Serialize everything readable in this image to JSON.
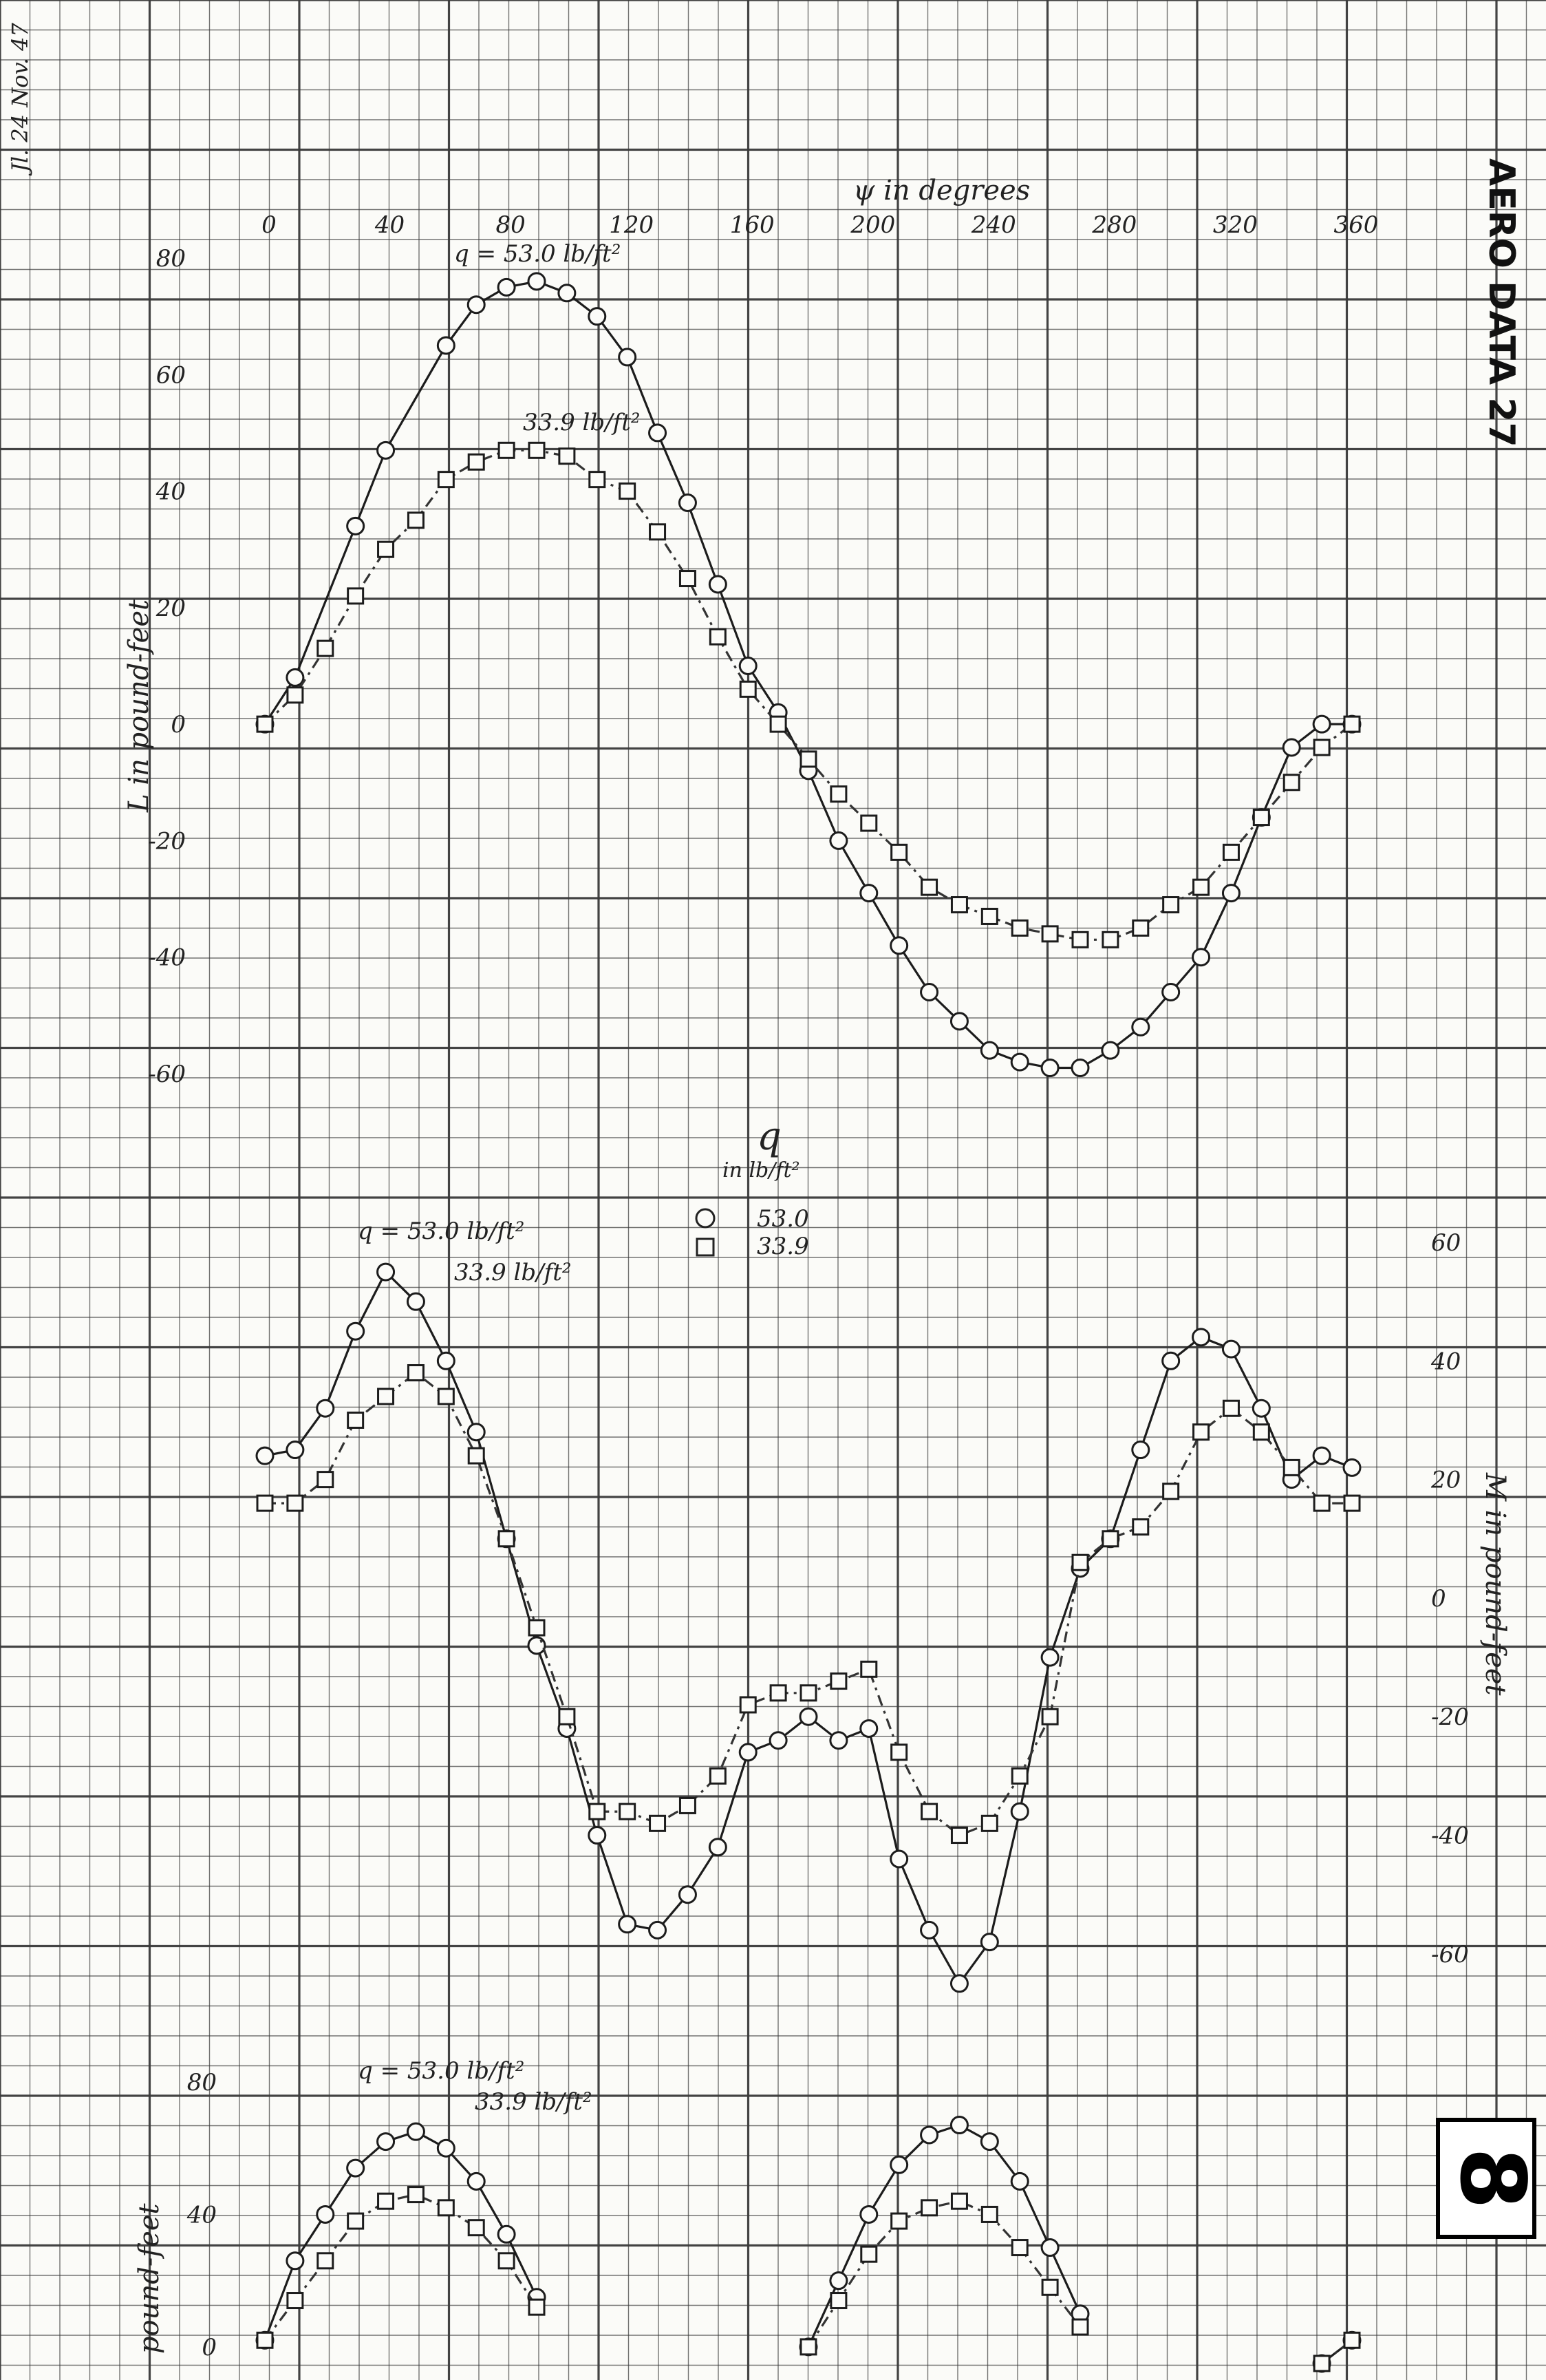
{
  "sheet": {
    "stamp_title": "AERO DATA 27",
    "corner_note": "Jl. 24 Nov. 47",
    "page_number": "8",
    "colors": {
      "grid": "#3a3a3a",
      "ink": "#222222",
      "paper": "#fbfbf8"
    }
  },
  "legend": {
    "title_symbol": "q",
    "title_unit": "in lb/ft²",
    "entries": [
      {
        "marker": "circle",
        "label": "53.0"
      },
      {
        "marker": "square",
        "label": "33.9"
      }
    ]
  },
  "chart_data": [
    {
      "type": "line",
      "xlabel": "ψ in degrees",
      "ylabel": "L in pound-feet",
      "x_ticks": [
        "0",
        "40",
        "80",
        "120",
        "160",
        "200",
        "240",
        "280",
        "320",
        "360"
      ],
      "y_ticks": [
        "80",
        "60",
        "40",
        "20",
        "0",
        "-20",
        "-40",
        "-60"
      ],
      "xlim": [
        0,
        360
      ],
      "ylim": [
        -60,
        80
      ],
      "grid": true,
      "annotations": [
        "q = 53.0 lb/ft²",
        "33.9 lb/ft²"
      ],
      "series": [
        {
          "name": "53.0",
          "marker": "circle",
          "x": [
            0,
            10,
            30,
            40,
            60,
            70,
            80,
            90,
            100,
            110,
            120,
            130,
            140,
            150,
            160,
            170,
            180,
            190,
            200,
            210,
            220,
            230,
            240,
            250,
            260,
            270,
            280,
            290,
            300,
            310,
            320,
            330,
            340,
            350,
            360
          ],
          "y": [
            0,
            8,
            34,
            47,
            65,
            72,
            75,
            76,
            74,
            70,
            63,
            50,
            38,
            24,
            10,
            2,
            -8,
            -20,
            -29,
            -38,
            -46,
            -51,
            -56,
            -58,
            -59,
            -59,
            -56,
            -52,
            -46,
            -40,
            -29,
            -16,
            -4,
            0,
            0
          ]
        },
        {
          "name": "33.9",
          "marker": "square",
          "x": [
            0,
            10,
            20,
            30,
            40,
            50,
            60,
            70,
            80,
            90,
            100,
            110,
            120,
            130,
            140,
            150,
            160,
            170,
            180,
            190,
            200,
            210,
            220,
            230,
            240,
            250,
            260,
            270,
            280,
            290,
            300,
            310,
            320,
            330,
            340,
            350,
            360
          ],
          "y": [
            0,
            5,
            13,
            22,
            30,
            35,
            42,
            45,
            47,
            47,
            46,
            42,
            40,
            33,
            25,
            15,
            6,
            0,
            -6,
            -12,
            -17,
            -22,
            -28,
            -31,
            -33,
            -35,
            -36,
            -37,
            -37,
            -35,
            -31,
            -28,
            -22,
            -16,
            -10,
            -4,
            0
          ]
        }
      ]
    },
    {
      "type": "line",
      "xlabel": "",
      "ylabel": "M in pound-feet",
      "x_ticks": [],
      "y_ticks": [
        "60",
        "40",
        "20",
        "0",
        "-20",
        "-40",
        "-60"
      ],
      "xlim": [
        0,
        360
      ],
      "ylim": [
        -70,
        60
      ],
      "grid": true,
      "annotations": [
        "q = 53.0 lb/ft²",
        "33.9 lb/ft²"
      ],
      "series": [
        {
          "name": "53.0",
          "marker": "circle",
          "x": [
            0,
            10,
            20,
            30,
            40,
            50,
            60,
            70,
            80,
            90,
            100,
            110,
            120,
            130,
            140,
            150,
            160,
            170,
            180,
            190,
            200,
            210,
            220,
            230,
            240,
            250,
            260,
            270,
            280,
            290,
            300,
            310,
            320,
            330,
            340,
            350,
            360
          ],
          "y": [
            24,
            25,
            32,
            45,
            55,
            50,
            40,
            28,
            10,
            -8,
            -22,
            -40,
            -55,
            -56,
            -50,
            -42,
            -26,
            -24,
            -20,
            -24,
            -22,
            -44,
            -56,
            -65,
            -58,
            -36,
            -10,
            5,
            10,
            25,
            40,
            44,
            42,
            32,
            20,
            24,
            22
          ]
        },
        {
          "name": "33.9",
          "marker": "square",
          "x": [
            0,
            10,
            20,
            30,
            40,
            50,
            60,
            70,
            80,
            90,
            100,
            110,
            120,
            130,
            140,
            150,
            160,
            170,
            180,
            190,
            200,
            210,
            220,
            230,
            240,
            250,
            260,
            270,
            280,
            290,
            300,
            310,
            320,
            330,
            340,
            350,
            360
          ],
          "y": [
            16,
            16,
            20,
            30,
            34,
            38,
            34,
            24,
            10,
            -5,
            -20,
            -36,
            -36,
            -38,
            -35,
            -30,
            -18,
            -16,
            -16,
            -14,
            -12,
            -26,
            -36,
            -40,
            -38,
            -30,
            -20,
            6,
            10,
            12,
            18,
            28,
            32,
            28,
            22,
            16,
            16
          ]
        }
      ]
    },
    {
      "type": "line",
      "xlabel": "",
      "ylabel": "pound-feet",
      "x_ticks": [],
      "y_ticks": [
        "80",
        "40",
        "0"
      ],
      "xlim": [
        0,
        360
      ],
      "ylim": [
        -10,
        80
      ],
      "grid": true,
      "annotations": [
        "q = 53.0 lb/ft²",
        "33.9 lb/ft²"
      ],
      "series": [
        {
          "name": "53.0",
          "marker": "circle",
          "x": [
            0,
            10,
            20,
            30,
            40,
            50,
            60,
            70,
            80,
            90,
            180,
            190,
            200,
            210,
            220,
            230,
            240,
            250,
            260,
            270,
            350,
            360
          ],
          "y": [
            2,
            26,
            40,
            54,
            62,
            65,
            60,
            50,
            34,
            15,
            0,
            20,
            40,
            55,
            64,
            67,
            62,
            50,
            30,
            10,
            -5,
            2
          ]
        },
        {
          "name": "33.9",
          "marker": "square",
          "x": [
            0,
            10,
            20,
            30,
            40,
            50,
            60,
            70,
            80,
            90,
            180,
            190,
            200,
            210,
            220,
            230,
            240,
            250,
            260,
            270,
            350,
            360
          ],
          "y": [
            2,
            14,
            26,
            38,
            44,
            46,
            42,
            36,
            26,
            12,
            0,
            14,
            28,
            38,
            42,
            44,
            40,
            30,
            18,
            6,
            -5,
            2
          ]
        }
      ]
    }
  ]
}
